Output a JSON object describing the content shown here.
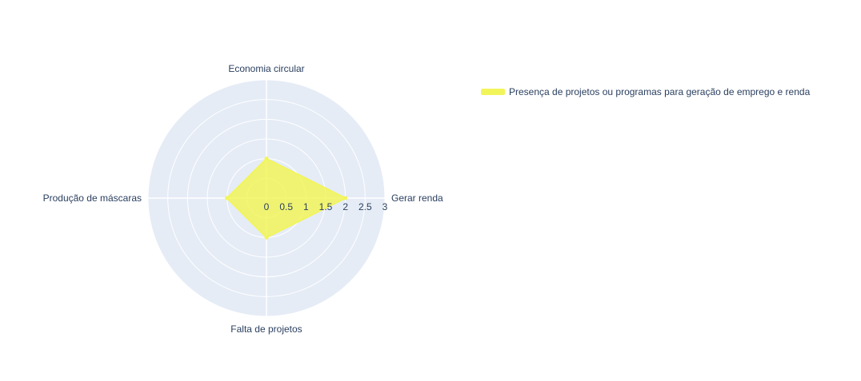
{
  "chart_data": {
    "type": "radar",
    "categories": [
      "Gerar renda",
      "Economia circular",
      "Produção de máscaras",
      "Falta de projetos"
    ],
    "series": [
      {
        "name": "Presença de projetos ou programas para geração de emprego e renda",
        "values": [
          2,
          1,
          1,
          1
        ],
        "color": "#f2f55a"
      }
    ],
    "radial_ticks": [
      "0",
      "0.5",
      "1",
      "1.5",
      "2",
      "2.5",
      "3"
    ],
    "radial_range": [
      0,
      3
    ],
    "grid": true,
    "legend_position": "top-right",
    "colors": {
      "polar_background": "#e5ecf6",
      "grid": "#ffffff",
      "fill": "#f2f55a",
      "text": "#2a3f5f"
    }
  }
}
